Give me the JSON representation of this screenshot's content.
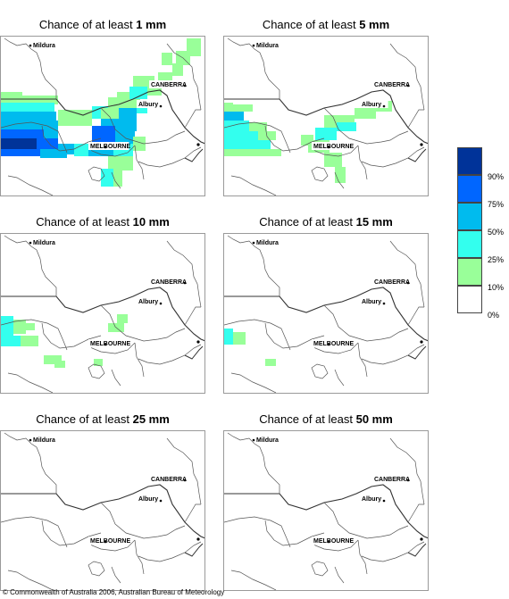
{
  "panels": [
    {
      "title_prefix": "Chance of at least ",
      "amount": "1 mm"
    },
    {
      "title_prefix": "Chance of at least ",
      "amount": "5 mm"
    },
    {
      "title_prefix": "Chance of at least ",
      "amount": "10 mm"
    },
    {
      "title_prefix": "Chance of at least ",
      "amount": "15 mm"
    },
    {
      "title_prefix": "Chance of at least ",
      "amount": "25 mm"
    },
    {
      "title_prefix": "Chance of at least ",
      "amount": "50 mm"
    }
  ],
  "places": {
    "mildura": "Mildura",
    "canberra": "CANBERRA",
    "albury": "Albury",
    "melbourne": "MELBOURNE"
  },
  "legend": [
    {
      "label": "90%",
      "color": "#003399"
    },
    {
      "label": "75%",
      "color": "#0066ff"
    },
    {
      "label": "50%",
      "color": "#00bbee"
    },
    {
      "label": "25%",
      "color": "#33ffee"
    },
    {
      "label": "10%",
      "color": "#99ff99"
    },
    {
      "label": "0%",
      "color": "#ffffff"
    }
  ],
  "copyright": "© Commonwealth of Australia 2006, Australian Bureau of Meteorology"
}
